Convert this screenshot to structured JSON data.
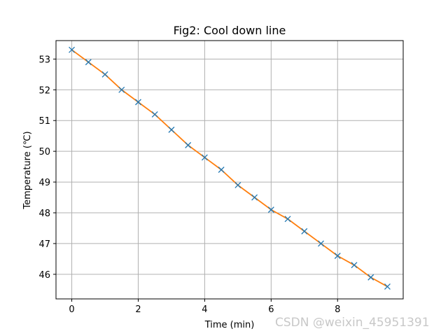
{
  "chart_data": {
    "type": "line",
    "title": "Fig2: Cool down line",
    "xlabel": "Time (min)",
    "ylabel": "Temperature (℃)",
    "xlim": [
      -0.475,
      9.975
    ],
    "ylim": [
      45.2,
      53.6
    ],
    "xticks": [
      0,
      2,
      4,
      6,
      8
    ],
    "yticks": [
      46,
      47,
      48,
      49,
      50,
      51,
      52,
      53
    ],
    "grid": true,
    "x": [
      0,
      0.5,
      1,
      1.5,
      2,
      2.5,
      3,
      3.5,
      4,
      4.5,
      5,
      5.5,
      6,
      6.5,
      7,
      7.5,
      8,
      8.5,
      9,
      9.5
    ],
    "series": [
      {
        "values": [
          53.3,
          52.9,
          52.5,
          52.0,
          51.6,
          51.2,
          50.7,
          50.2,
          49.8,
          49.4,
          48.9,
          48.5,
          48.1,
          47.8,
          47.4,
          47.0,
          46.6,
          46.3,
          45.9,
          45.6
        ],
        "line_color": "#ff7f0e",
        "marker": "x",
        "marker_color": "#1f77b4"
      }
    ]
  },
  "watermark": "CSDN @weixin_45951391"
}
